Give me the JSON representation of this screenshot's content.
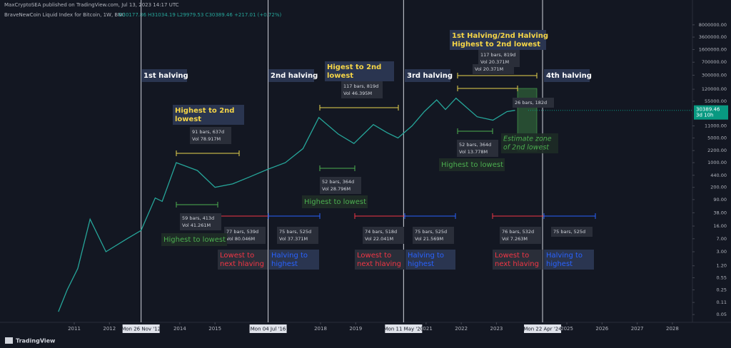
{
  "header": {
    "publisher": "MaxCryptoSEA published on TradingView.com, Jul 13, 2023 14:17 UTC",
    "symbol": "BraveNewCoin Liquid Index for Bitcoin, 1W, BNC",
    "ohlc": "O30177.86 H31034.19 L29979.53 C30389.46 +217.01 (+0.72%)"
  },
  "chart_data": {
    "type": "line",
    "color": "#26a69a",
    "log_scale": true,
    "x": [
      2010.55,
      2010.8,
      2011.1,
      2011.45,
      2011.9,
      2012.5,
      2012.9,
      2013.3,
      2013.5,
      2013.9,
      2014.5,
      2015.0,
      2015.5,
      2016.0,
      2016.5,
      2017.0,
      2017.5,
      2017.95,
      2018.5,
      2018.95,
      2019.5,
      2019.9,
      2020.2,
      2020.6,
      2020.95,
      2021.3,
      2021.55,
      2021.85,
      2022.45,
      2022.9,
      2023.3,
      2023.53
    ],
    "values": [
      0.06,
      0.25,
      1,
      25,
      3,
      7,
      12,
      100,
      80,
      1000,
      600,
      200,
      250,
      400,
      650,
      1000,
      2500,
      19000,
      6500,
      3500,
      12000,
      7000,
      5000,
      11000,
      28000,
      60000,
      32000,
      67000,
      20000,
      16000,
      28000,
      30389.46
    ],
    "xlim": [
      2008.89,
      2028.57
    ],
    "xticks": [
      2011,
      2012,
      2014,
      2015,
      2018,
      2019,
      2021,
      2022,
      2023,
      2025,
      2026,
      2027,
      2028
    ],
    "ylim": [
      0.033,
      11000000
    ],
    "yticks": [
      {
        "value": 8000000,
        "label": "8000000.00"
      },
      {
        "value": 3600000,
        "label": "3600000.00"
      },
      {
        "value": 1600000,
        "label": "1600000.00"
      },
      {
        "value": 700000,
        "label": "700000.00"
      },
      {
        "value": 300000,
        "label": "300000.00"
      },
      {
        "value": 120000,
        "label": "120000.00"
      },
      {
        "value": 55000,
        "label": "55000.00"
      },
      {
        "value": 11000,
        "label": "11000.00"
      },
      {
        "value": 5000,
        "label": "5000.00"
      },
      {
        "value": 2200,
        "label": "2200.00"
      },
      {
        "value": 1000,
        "label": "1000.00"
      },
      {
        "value": 440,
        "label": "440.00"
      },
      {
        "value": 200,
        "label": "200.00"
      },
      {
        "value": 90,
        "label": "90.00"
      },
      {
        "value": 38,
        "label": "38.00"
      },
      {
        "value": 16,
        "label": "16.00"
      },
      {
        "value": 7,
        "label": "7.00"
      },
      {
        "value": 3,
        "label": "3.00"
      },
      {
        "value": 1.2,
        "label": "1.20"
      },
      {
        "value": 0.55,
        "label": "0.55"
      },
      {
        "value": 0.25,
        "label": "0.25"
      },
      {
        "value": 0.11,
        "label": "0.11"
      },
      {
        "value": 0.05,
        "label": "0.05"
      }
    ],
    "last_price": 30389.46,
    "countdown": "3d 10h",
    "halvings": [
      {
        "label": "Mon 26 Nov '12",
        "x": 2012.9
      },
      {
        "label": "Mon 04 Jul '16",
        "x": 2016.51
      },
      {
        "label": "Mon 11 May '20",
        "x": 2020.36
      },
      {
        "label": "Mon 22 Apr '24",
        "x": 2024.31
      }
    ]
  },
  "annotations": {
    "halving_titles": [
      "1st halving",
      "2nd halving",
      "3rd halving",
      "4th halving"
    ],
    "yellow_notes": [
      [
        "Highest to 2nd",
        "lowest"
      ],
      [
        "Higest to 2nd",
        "lowest"
      ],
      [
        "1st Halving/2nd Halving",
        "Highest to 2nd lowest"
      ]
    ],
    "measures": [
      [
        "91 bars, 637d",
        "Vol 78.917M"
      ],
      [
        "117 bars, 819d",
        "Vol 46.395M"
      ],
      [
        "117 bars, 819d",
        "Vol 20.371M"
      ],
      [
        "Vol 20.371M"
      ],
      [
        "26 bars, 182d"
      ],
      [
        "59 bars, 413d",
        "Vol 41.261M"
      ],
      [
        "52 bars, 364d",
        "Vol 28.796M"
      ],
      [
        "52 bars, 364d",
        "Vol 13.778M"
      ],
      [
        "77 bars, 539d",
        "Vol 80.046M"
      ],
      [
        "75 bars, 525d",
        "Vol 37.371M"
      ],
      [
        "74 bars, 518d",
        "Vol 22.041M"
      ],
      [
        "75 bars, 525d",
        "Vol 21.569M"
      ],
      [
        "76 bars, 532d",
        "Vol 7.263M"
      ],
      [
        "75 bars, 525d"
      ]
    ],
    "green_notes": [
      "Highest to lowest",
      "Highest to lowest",
      "Highest to lowest"
    ],
    "red_notes": [
      [
        "Lowest to",
        "next hlaving"
      ],
      [
        "Lowest to",
        "next hlaving"
      ],
      [
        "Lowest to",
        "next hlaving"
      ]
    ],
    "blue_notes": [
      [
        "Halving to",
        "highest"
      ],
      [
        "Halving to",
        "highest"
      ],
      [
        "Halving to",
        "highest"
      ]
    ],
    "estimate": [
      "Estimate zone",
      "of 2nd lowest"
    ]
  },
  "footer": {
    "brand": "TradingView"
  }
}
